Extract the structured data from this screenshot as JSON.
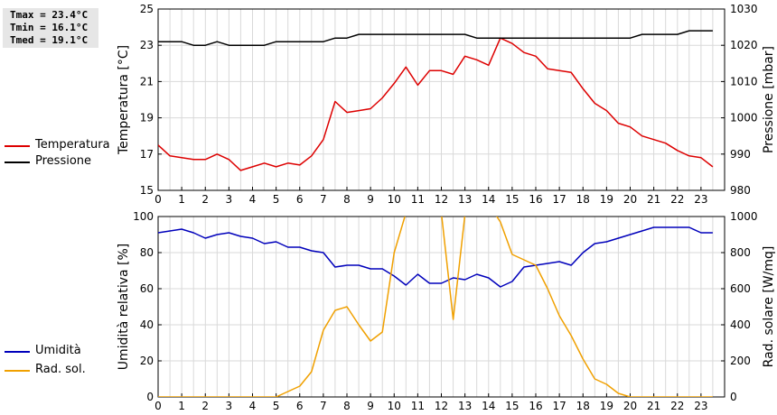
{
  "stats": {
    "tmax": "Tmax = 23.4°C",
    "tmin": "Tmin = 16.1°C",
    "tmed": "Tmed = 19.1°C"
  },
  "legend_top": [
    {
      "label": "Temperatura",
      "color": "#dd0000"
    },
    {
      "label": "Pressione",
      "color": "#000000"
    }
  ],
  "legend_bottom": [
    {
      "label": "Umidità",
      "color": "#0000bb"
    },
    {
      "label": "Rad. sol.",
      "color": "#f0a000"
    }
  ],
  "chart_data": [
    {
      "type": "line",
      "xlabel": "",
      "xlim": [
        0,
        24
      ],
      "x_ticks": [
        "0",
        "1",
        "2",
        "3",
        "4",
        "5",
        "6",
        "7",
        "8",
        "9",
        "10",
        "11",
        "12",
        "13",
        "14",
        "15",
        "16",
        "17",
        "18",
        "19",
        "20",
        "21",
        "22",
        "23"
      ],
      "grid": true,
      "ylabel": "Temperatura [°C]",
      "ylim": [
        15,
        25
      ],
      "y_ticks": [
        "15",
        "17",
        "19",
        "21",
        "23",
        "25"
      ],
      "ylabel_right": "Pressione [mbar]",
      "ylim_right": [
        980,
        1030
      ],
      "y_ticks_right": [
        "980",
        "990",
        "1000",
        "1010",
        "1020",
        "1030"
      ],
      "series": [
        {
          "name": "Temperatura",
          "color": "#dd0000",
          "axis": "left",
          "x": [
            0,
            0.5,
            1,
            1.5,
            2,
            2.5,
            3,
            3.5,
            4,
            4.5,
            5,
            5.5,
            6,
            6.5,
            7,
            7.5,
            8,
            8.5,
            9,
            9.5,
            10,
            10.5,
            11,
            11.5,
            12,
            12.5,
            13,
            13.5,
            14,
            14.5,
            15,
            15.5,
            16,
            16.5,
            17,
            17.5,
            18,
            18.5,
            19,
            19.5,
            20,
            20.5,
            21,
            21.5,
            22,
            22.5,
            23,
            23.5
          ],
          "values": [
            17.5,
            16.9,
            16.8,
            16.7,
            16.7,
            17.0,
            16.7,
            16.1,
            16.3,
            16.5,
            16.3,
            16.5,
            16.4,
            16.9,
            17.8,
            19.9,
            19.3,
            19.4,
            19.5,
            20.1,
            20.9,
            21.8,
            20.8,
            21.6,
            21.6,
            21.4,
            22.4,
            22.2,
            21.9,
            23.4,
            23.1,
            22.6,
            22.4,
            21.7,
            21.6,
            21.5,
            20.6,
            19.8,
            19.4,
            18.7,
            18.5,
            18.0,
            17.8,
            17.6,
            17.2,
            16.9,
            16.8,
            16.3
          ]
        },
        {
          "name": "Pressione",
          "color": "#000000",
          "axis": "right",
          "x": [
            0,
            0.5,
            1,
            1.5,
            2,
            2.5,
            3,
            3.5,
            4,
            4.5,
            5,
            5.5,
            6,
            6.5,
            7,
            7.5,
            8,
            8.5,
            9,
            9.5,
            10,
            10.5,
            11,
            11.5,
            12,
            12.5,
            13,
            13.5,
            14,
            14.5,
            15,
            15.5,
            16,
            16.5,
            17,
            17.5,
            18,
            18.5,
            19,
            19.5,
            20,
            20.5,
            21,
            21.5,
            22,
            22.5,
            23,
            23.5
          ],
          "values": [
            1021,
            1021,
            1021,
            1020,
            1020,
            1021,
            1020,
            1020,
            1020,
            1020,
            1021,
            1021,
            1021,
            1021,
            1021,
            1022,
            1022,
            1023,
            1023,
            1023,
            1023,
            1023,
            1023,
            1023,
            1023,
            1023,
            1023,
            1022,
            1022,
            1022,
            1022,
            1022,
            1022,
            1022,
            1022,
            1022,
            1022,
            1022,
            1022,
            1022,
            1022,
            1023,
            1023,
            1023,
            1023,
            1024,
            1024,
            1024
          ]
        }
      ]
    },
    {
      "type": "line",
      "xlabel": "",
      "xlim": [
        0,
        24
      ],
      "x_ticks": [
        "0",
        "1",
        "2",
        "3",
        "4",
        "5",
        "6",
        "7",
        "8",
        "9",
        "10",
        "11",
        "12",
        "13",
        "14",
        "15",
        "16",
        "17",
        "18",
        "19",
        "20",
        "21",
        "22",
        "23"
      ],
      "grid": true,
      "ylabel": "Umidità relativa [%]",
      "ylim": [
        0,
        100
      ],
      "y_ticks": [
        "0",
        "20",
        "40",
        "60",
        "80",
        "100"
      ],
      "ylabel_right": "Rad. solare [W/mq]",
      "ylim_right": [
        0,
        1000
      ],
      "y_ticks_right": [
        "0",
        "200",
        "400",
        "600",
        "800",
        "1000"
      ],
      "series": [
        {
          "name": "Umidità",
          "color": "#0000bb",
          "axis": "left",
          "x": [
            0,
            0.5,
            1,
            1.5,
            2,
            2.5,
            3,
            3.5,
            4,
            4.5,
            5,
            5.5,
            6,
            6.5,
            7,
            7.5,
            8,
            8.5,
            9,
            9.5,
            10,
            10.5,
            11,
            11.5,
            12,
            12.5,
            13,
            13.5,
            14,
            14.5,
            15,
            15.5,
            16,
            16.5,
            17,
            17.5,
            18,
            18.5,
            19,
            19.5,
            20,
            20.5,
            21,
            21.5,
            22,
            22.5,
            23,
            23.5
          ],
          "values": [
            91,
            92,
            93,
            91,
            88,
            90,
            91,
            89,
            88,
            85,
            86,
            83,
            83,
            81,
            80,
            72,
            73,
            73,
            71,
            71,
            67,
            62,
            68,
            63,
            63,
            66,
            65,
            68,
            66,
            61,
            64,
            72,
            73,
            74,
            75,
            73,
            80,
            85,
            86,
            88,
            90,
            92,
            94,
            94,
            94,
            94,
            91,
            91
          ]
        },
        {
          "name": "Rad. sol.",
          "color": "#f0a000",
          "axis": "right",
          "x": [
            0,
            0.5,
            1,
            1.5,
            2,
            2.5,
            3,
            3.5,
            4,
            4.5,
            5,
            5.5,
            6,
            6.5,
            7,
            7.5,
            8,
            8.5,
            9,
            9.5,
            10,
            10.5,
            11,
            11.5,
            12,
            12.5,
            13,
            13.5,
            14,
            14.5,
            15,
            15.5,
            16,
            16.5,
            17,
            17.5,
            18,
            18.5,
            19,
            19.5,
            20,
            20.5,
            21,
            21.5,
            22,
            22.5,
            23,
            23.5
          ],
          "values": [
            0,
            0,
            0,
            0,
            0,
            0,
            0,
            0,
            0,
            0,
            0,
            30,
            60,
            140,
            370,
            480,
            500,
            400,
            310,
            360,
            800,
            1020,
            1080,
            1100,
            1020,
            430,
            1010,
            1080,
            1070,
            970,
            790,
            760,
            730,
            600,
            450,
            340,
            210,
            100,
            70,
            20,
            0,
            0,
            0,
            0,
            0,
            0,
            0,
            0
          ]
        }
      ]
    }
  ]
}
